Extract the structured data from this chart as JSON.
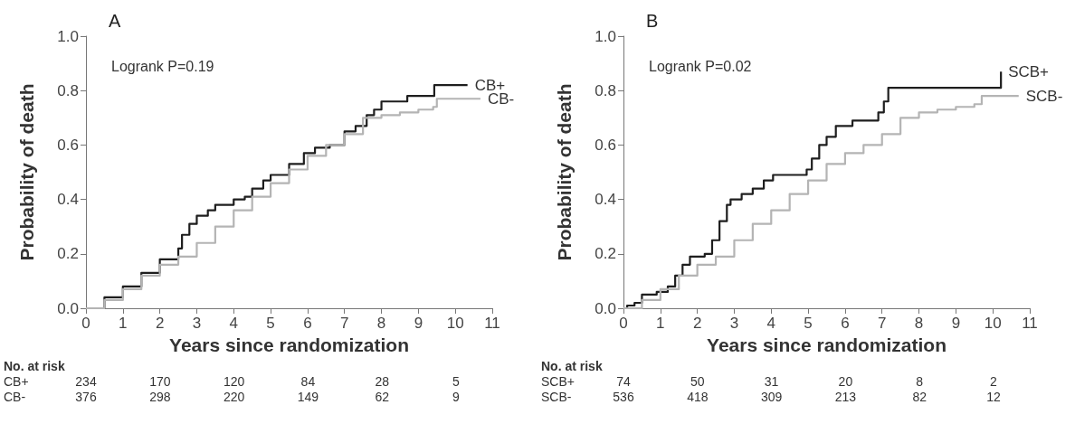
{
  "chart_data": [
    {
      "type": "step",
      "title": "A",
      "xlabel": "Years since randomization",
      "ylabel": "Probability of death",
      "xlim": [
        0,
        11
      ],
      "xticks": [
        0,
        1,
        2,
        3,
        4,
        5,
        6,
        7,
        8,
        9,
        10,
        11
      ],
      "ylim": [
        0,
        1
      ],
      "yticks": [
        {
          "value": 0,
          "label": "0.0"
        },
        {
          "value": 0.2,
          "label": "0.2"
        },
        {
          "value": 0.4,
          "label": "0.4"
        },
        {
          "value": 0.6,
          "label": "0.6"
        },
        {
          "value": 0.8,
          "label": "0.8"
        },
        {
          "value": 1,
          "label": "1.0"
        }
      ],
      "grid": false,
      "annotations": [
        "Logrank P=0.19",
        "No. at risk",
        "CB+ 234 170 120 84 28 5",
        "CB- 376 298 220 149 62 9"
      ],
      "series": [
        {
          "name": "CB+",
          "color": "#1e1e1e",
          "x": [
            0,
            0.5,
            1,
            1.5,
            2,
            2.5,
            2.6,
            2.8,
            3,
            3.3,
            3.5,
            4,
            4.3,
            4.5,
            4.8,
            5,
            5.5,
            5.9,
            6.2,
            6.6,
            7,
            7.3,
            7.6,
            7.8,
            8,
            8.7,
            9.43,
            10.33
          ],
          "values": [
            0,
            0.04,
            0.08,
            0.13,
            0.18,
            0.22,
            0.27,
            0.31,
            0.34,
            0.36,
            0.38,
            0.4,
            0.41,
            0.44,
            0.47,
            0.49,
            0.53,
            0.57,
            0.59,
            0.6,
            0.65,
            0.67,
            0.71,
            0.73,
            0.76,
            0.78,
            0.82,
            0.82
          ]
        },
        {
          "name": "CB-",
          "color": "#b4b4b4",
          "x": [
            0,
            0.5,
            1,
            1.5,
            2,
            2.5,
            3,
            3.5,
            4,
            4.5,
            5,
            5.5,
            6,
            6.5,
            7,
            7.5,
            8,
            8.5,
            9,
            9.4,
            9.5,
            10.68
          ],
          "values": [
            0,
            0.03,
            0.07,
            0.12,
            0.16,
            0.19,
            0.24,
            0.3,
            0.36,
            0.41,
            0.46,
            0.51,
            0.56,
            0.6,
            0.64,
            0.7,
            0.71,
            0.72,
            0.73,
            0.74,
            0.77,
            0.77
          ]
        }
      ]
    },
    {
      "type": "step",
      "title": "B",
      "xlabel": "Years since randomization",
      "ylabel": "Probability of death",
      "xlim": [
        0,
        11
      ],
      "xticks": [
        0,
        1,
        2,
        3,
        4,
        5,
        6,
        7,
        8,
        9,
        10,
        11
      ],
      "ylim": [
        0,
        1
      ],
      "yticks": [
        {
          "value": 0,
          "label": "0.0"
        },
        {
          "value": 0.2,
          "label": "0.2"
        },
        {
          "value": 0.4,
          "label": "0.4"
        },
        {
          "value": 0.6,
          "label": "0.6"
        },
        {
          "value": 0.8,
          "label": "0.8"
        },
        {
          "value": 1,
          "label": "1.0"
        }
      ],
      "grid": false,
      "annotations": [
        "Logrank P=0.02",
        "No. at risk",
        "SCB+ 74 50 31 20 8 2",
        "SCB- 536 418 309 213 82 12"
      ],
      "series": [
        {
          "name": "SCB+",
          "color": "#1e1e1e",
          "x": [
            0,
            0.1,
            0.3,
            0.5,
            0.9,
            1.2,
            1.4,
            1.6,
            1.8,
            2.2,
            2.4,
            2.6,
            2.8,
            2.9,
            3.2,
            3.5,
            3.8,
            4.05,
            4.96,
            5.1,
            5.3,
            5.5,
            5.75,
            6.2,
            6.9,
            7.05,
            7.17,
            10.22,
            10.22
          ],
          "values": [
            0,
            0.01,
            0.02,
            0.05,
            0.06,
            0.08,
            0.12,
            0.16,
            0.19,
            0.2,
            0.25,
            0.32,
            0.38,
            0.4,
            0.42,
            0.44,
            0.47,
            0.49,
            0.51,
            0.55,
            0.6,
            0.63,
            0.67,
            0.69,
            0.72,
            0.76,
            0.81,
            0.81,
            0.87
          ]
        },
        {
          "name": "SCB-",
          "color": "#b4b4b4",
          "x": [
            0,
            0.5,
            1,
            1.5,
            2,
            2.5,
            3,
            3.5,
            4,
            4.5,
            5,
            5.5,
            6,
            6.5,
            7,
            7.5,
            8,
            8.5,
            9,
            9.5,
            9.7,
            10.7
          ],
          "values": [
            0,
            0.03,
            0.07,
            0.12,
            0.16,
            0.19,
            0.25,
            0.31,
            0.36,
            0.42,
            0.47,
            0.53,
            0.57,
            0.6,
            0.64,
            0.7,
            0.72,
            0.73,
            0.74,
            0.75,
            0.78,
            0.78
          ]
        }
      ]
    }
  ]
}
